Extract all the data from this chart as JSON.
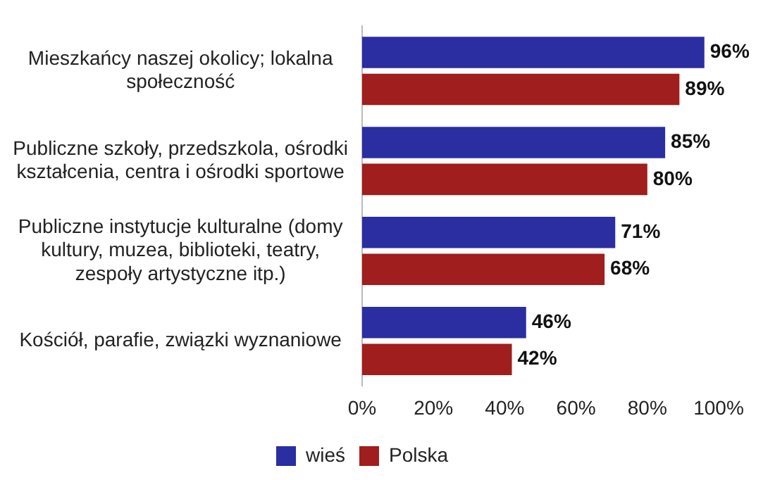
{
  "chart_data": {
    "type": "bar",
    "orientation": "horizontal",
    "categories": [
      "Mieszkańcy naszej okolicy; lokalna społeczność",
      "Publiczne szkoły, przedszkola, ośrodki kształcenia, centra i ośrodki sportowe",
      "Publiczne instytucje kulturalne (domy kultury, muzea, biblioteki, teatry, zespoły artystyczne itp.)",
      "Kościół, parafie, związki wyznaniowe"
    ],
    "series": [
      {
        "name": "wieś",
        "color": "#2b2ea0",
        "values": [
          96,
          85,
          71,
          46
        ],
        "value_labels": [
          "96%",
          "85%",
          "71%",
          "46%"
        ]
      },
      {
        "name": "Polska",
        "color": "#a01e1e",
        "values": [
          89,
          80,
          68,
          42
        ],
        "value_labels": [
          "89%",
          "80%",
          "68%",
          "42%"
        ]
      }
    ],
    "xlim": [
      0,
      100
    ],
    "xticks": [
      {
        "value": 0,
        "label": "0%"
      },
      {
        "value": 20,
        "label": "20%"
      },
      {
        "value": 40,
        "label": "40%"
      },
      {
        "value": 60,
        "label": "60%"
      },
      {
        "value": 80,
        "label": "80%"
      },
      {
        "value": 100,
        "label": "100%"
      }
    ],
    "grid": false,
    "legend": "bottom"
  }
}
